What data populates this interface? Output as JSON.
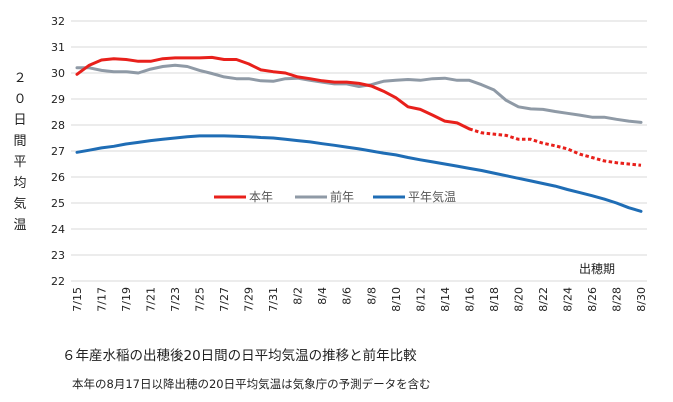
{
  "caption": "６年産水稲の出穂後20日間の日平均気温の推移と前年比較",
  "note": "本年の8月17日以降出穂の20日平均気温は気象庁の予測データを含む",
  "chart_data": {
    "type": "line",
    "ylabel": "２０日間平均気温",
    "ylim": [
      22,
      32
    ],
    "yticks": [
      22,
      23,
      24,
      25,
      26,
      27,
      28,
      29,
      30,
      31,
      32
    ],
    "grid": true,
    "annotation": "出穂期",
    "legend_position": "middle",
    "x": [
      "7/15",
      "7/16",
      "7/17",
      "7/18",
      "7/19",
      "7/20",
      "7/21",
      "7/22",
      "7/23",
      "7/24",
      "7/25",
      "7/26",
      "7/27",
      "7/28",
      "7/29",
      "7/30",
      "7/31",
      "8/1",
      "8/2",
      "8/3",
      "8/4",
      "8/5",
      "8/6",
      "8/7",
      "8/8",
      "8/9",
      "8/10",
      "8/11",
      "8/12",
      "8/13",
      "8/14",
      "8/15",
      "8/16",
      "8/17",
      "8/18",
      "8/19",
      "8/20",
      "8/21",
      "8/22",
      "8/23",
      "8/24",
      "8/25",
      "8/26",
      "8/27",
      "8/28",
      "8/29",
      "8/30"
    ],
    "xtick_labels": [
      "7/15",
      "7/17",
      "7/19",
      "7/21",
      "7/23",
      "7/25",
      "7/27",
      "7/29",
      "7/31",
      "8/2",
      "8/4",
      "8/6",
      "8/8",
      "8/10",
      "8/12",
      "8/14",
      "8/16",
      "8/18",
      "8/20",
      "8/22",
      "8/24",
      "8/26",
      "8/28",
      "8/30"
    ],
    "series": [
      {
        "name": "本年",
        "color": "#e8201b",
        "dashed_from": "8/16",
        "values": [
          29.95,
          30.3,
          30.5,
          30.55,
          30.52,
          30.45,
          30.45,
          30.55,
          30.58,
          30.58,
          30.58,
          30.6,
          30.52,
          30.52,
          30.35,
          30.12,
          30.05,
          30.0,
          29.85,
          29.78,
          29.7,
          29.65,
          29.65,
          29.6,
          29.5,
          29.3,
          29.05,
          28.7,
          28.6,
          28.38,
          28.15,
          28.08,
          27.85,
          27.7,
          27.65,
          27.6,
          27.45,
          27.45,
          27.3,
          27.2,
          27.08,
          26.88,
          26.75,
          26.62,
          26.55,
          26.5,
          26.45
        ]
      },
      {
        "name": "前年",
        "color": "#8f9aa6",
        "values": [
          30.2,
          30.2,
          30.1,
          30.05,
          30.05,
          30.0,
          30.15,
          30.25,
          30.3,
          30.25,
          30.1,
          29.98,
          29.85,
          29.78,
          29.78,
          29.7,
          29.68,
          29.78,
          29.8,
          29.72,
          29.65,
          29.58,
          29.58,
          29.48,
          29.55,
          29.68,
          29.72,
          29.75,
          29.72,
          29.78,
          29.8,
          29.72,
          29.72,
          29.55,
          29.35,
          28.95,
          28.7,
          28.62,
          28.6,
          28.52,
          28.45,
          28.38,
          28.3,
          28.3,
          28.22,
          28.15,
          28.1
        ]
      },
      {
        "name": "平年気温",
        "color": "#1f6db5",
        "values": [
          26.95,
          27.03,
          27.12,
          27.18,
          27.27,
          27.33,
          27.4,
          27.45,
          27.5,
          27.55,
          27.58,
          27.58,
          27.58,
          27.57,
          27.55,
          27.52,
          27.5,
          27.45,
          27.4,
          27.35,
          27.28,
          27.22,
          27.15,
          27.08,
          27.0,
          26.92,
          26.85,
          26.75,
          26.66,
          26.58,
          26.5,
          26.42,
          26.33,
          26.25,
          26.15,
          26.05,
          25.95,
          25.85,
          25.75,
          25.65,
          25.52,
          25.4,
          25.28,
          25.15,
          25.0,
          24.82,
          24.68
        ]
      }
    ]
  }
}
